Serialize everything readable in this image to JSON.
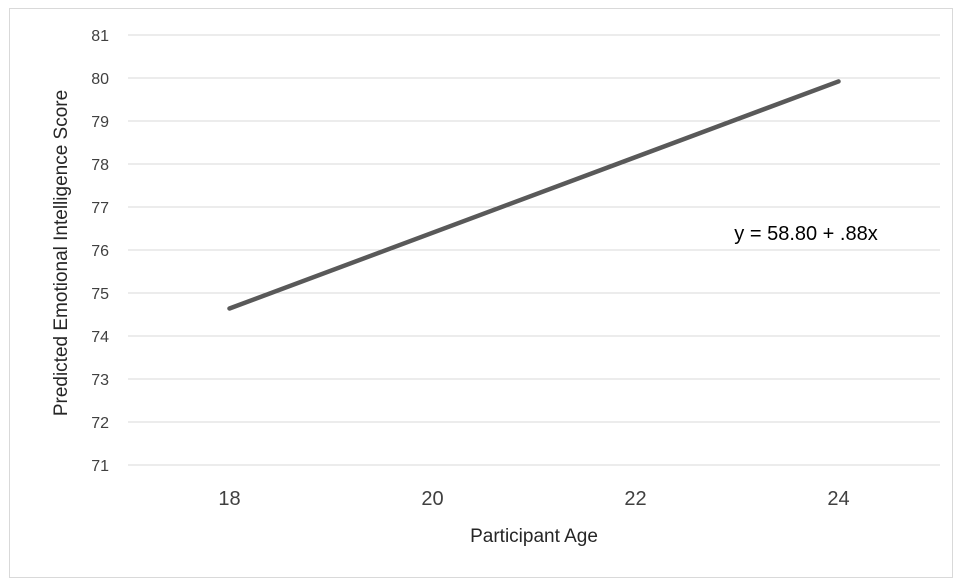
{
  "chart_data": {
    "type": "line",
    "xlabel": "Participant Age",
    "ylabel": "Predicted Emotional Intelligence Score",
    "x_ticks": [
      "18",
      "20",
      "22",
      "24"
    ],
    "y_ticks": [
      "71",
      "72",
      "73",
      "74",
      "75",
      "76",
      "77",
      "78",
      "79",
      "80",
      "81"
    ],
    "xlim": [
      17,
      25
    ],
    "ylim": [
      71,
      81
    ],
    "grid": "horizontal",
    "series": [
      {
        "x": [
          18,
          24
        ],
        "y": [
          74.64,
          79.92
        ],
        "color": "#595959"
      }
    ],
    "annotation": "y = 58.80 + .88x"
  }
}
